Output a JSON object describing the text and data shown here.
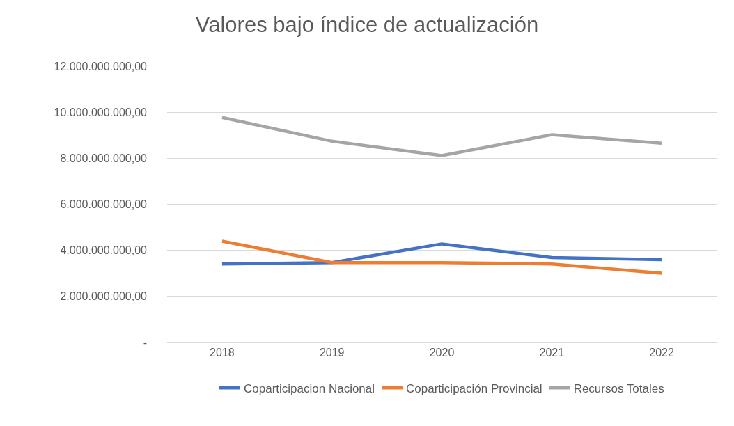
{
  "chart_data": {
    "type": "line",
    "title": "Valores bajo índice de actualización",
    "categories": [
      "2018",
      "2019",
      "2020",
      "2021",
      "2022"
    ],
    "series": [
      {
        "name": "Coparticipacion Nacional",
        "color": "#4472c4",
        "values": [
          3410000000,
          3470000000,
          4280000000,
          3690000000,
          3600000000
        ]
      },
      {
        "name": "Coparticipación Provincial",
        "color": "#ed7d31",
        "values": [
          4400000000,
          3470000000,
          3470000000,
          3410000000,
          3010000000
        ]
      },
      {
        "name": "Recursos Totales",
        "color": "#a5a5a5",
        "values": [
          9770000000,
          8740000000,
          8120000000,
          9020000000,
          8650000000
        ]
      }
    ],
    "ylim": [
      0,
      12000000000
    ],
    "yticks": [
      {
        "value": 0,
        "label": "-"
      },
      {
        "value": 2000000000,
        "label": "2.000.000.000,00"
      },
      {
        "value": 4000000000,
        "label": "4.000.000.000,00"
      },
      {
        "value": 6000000000,
        "label": "6.000.000.000,00"
      },
      {
        "value": 8000000000,
        "label": "8.000.000.000,00"
      },
      {
        "value": 10000000000,
        "label": "10.000.000.000,00"
      },
      {
        "value": 12000000000,
        "label": "12.000.000.000,00"
      }
    ],
    "grid": "y",
    "legend": "bottom",
    "marker": "none",
    "line_style": "solid"
  }
}
